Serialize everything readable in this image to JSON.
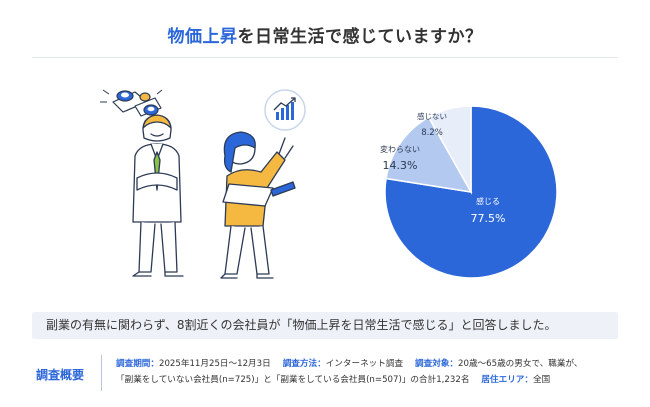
{
  "title": {
    "highlight": "物価上昇",
    "rest": "を日常生活で感じていますか？"
  },
  "colors": {
    "accent": "#2c67d9",
    "slice_1": "#2c67d9",
    "slice_2": "#b3c9ef",
    "slice_3": "#e8eef9"
  },
  "chart_data": {
    "type": "pie",
    "title": "物価上昇を日常生活で感じていますか？",
    "unit": "%",
    "slices": [
      {
        "label": "感じる",
        "value": 77.5,
        "value_label": "77.5%",
        "color": "#2c67d9",
        "text_color": "#ffffff"
      },
      {
        "label": "変わらない",
        "value": 14.3,
        "value_label": "14.3%",
        "color": "#b3c9ef",
        "text_color": "#2b3a55"
      },
      {
        "label": "感じない",
        "value": 8.2,
        "value_label": "8.2%",
        "color": "#e8eef9",
        "text_color": "#2b3a55"
      }
    ],
    "start": "12 o'clock",
    "direction": "clockwise",
    "legend": "none"
  },
  "summary": "副業の有無に関わらず、8割近くの会社員が「物価上昇を日常生活で感じる」と回答しました。",
  "overview": {
    "label": "調査概要",
    "period_label": "調査期間：",
    "period_value": "2025年11月25日〜12月3日",
    "method_label": "調査方法：",
    "method_value": "インターネット調査",
    "target_label": "調査対象：",
    "target_value": "20歳〜65歳の男女で、職業が、",
    "target_value_2": "「副業をしていない会社員(n=725)」と「副業をしている会社員(n=507)」の合計1,232名",
    "area_label": "居住エリア：",
    "area_value": "全国"
  }
}
